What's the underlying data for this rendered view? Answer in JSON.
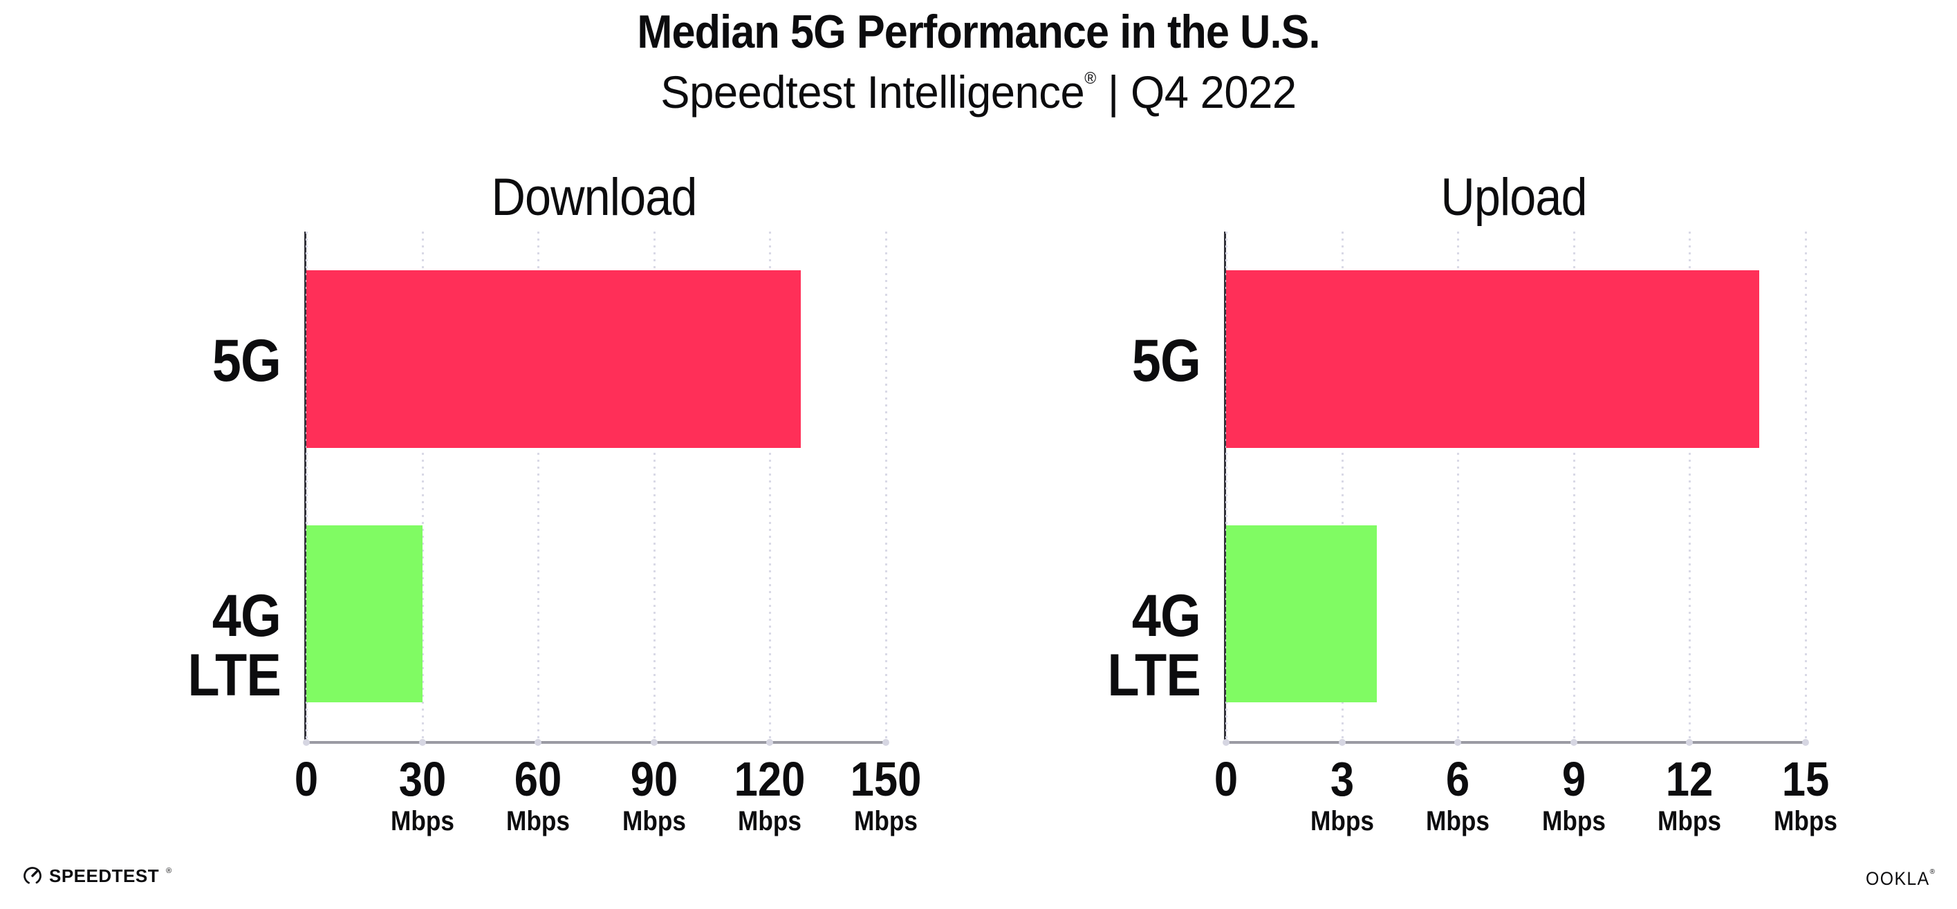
{
  "header": {
    "title": "Median 5G Performance in the U.S.",
    "subtitle_brand": "Speedtest Intelligence",
    "subtitle_reg": "®",
    "subtitle_rest": " | Q4 2022"
  },
  "colors": {
    "bar_5g": "#ff2f58",
    "bar_4g_lte": "#80fb63",
    "axis_spine": "#33333b",
    "axis_baseline": "#9b9ba3",
    "gridline": "#d9d9e6",
    "text": "#0c0c0e",
    "background": "#ffffff"
  },
  "chart_data": [
    {
      "type": "bar",
      "orientation": "horizontal",
      "title": "Download",
      "categories": [
        "5G",
        "4G LTE"
      ],
      "values": [
        128,
        30
      ],
      "unit": "Mbps",
      "xlim": [
        0,
        150
      ],
      "xticks": [
        0,
        30,
        60,
        90,
        120,
        150
      ],
      "xtick_unit_label": "Mbps",
      "grid": "dotted-vertical",
      "legend": "none",
      "bar_colors": [
        "#ff2f58",
        "#80fb63"
      ]
    },
    {
      "type": "bar",
      "orientation": "horizontal",
      "title": "Upload",
      "categories": [
        "5G",
        "4G LTE"
      ],
      "values": [
        13.8,
        3.9
      ],
      "unit": "Mbps",
      "xlim": [
        0,
        15
      ],
      "xticks": [
        0,
        3,
        6,
        9,
        12,
        15
      ],
      "xtick_unit_label": "Mbps",
      "grid": "dotted-vertical",
      "legend": "none",
      "bar_colors": [
        "#ff2f58",
        "#80fb63"
      ]
    }
  ],
  "footer": {
    "speedtest_logo_text": "SPEEDTEST",
    "speedtest_reg": "®",
    "ookla_logo_text": "OOKLA",
    "ookla_reg": "®"
  }
}
